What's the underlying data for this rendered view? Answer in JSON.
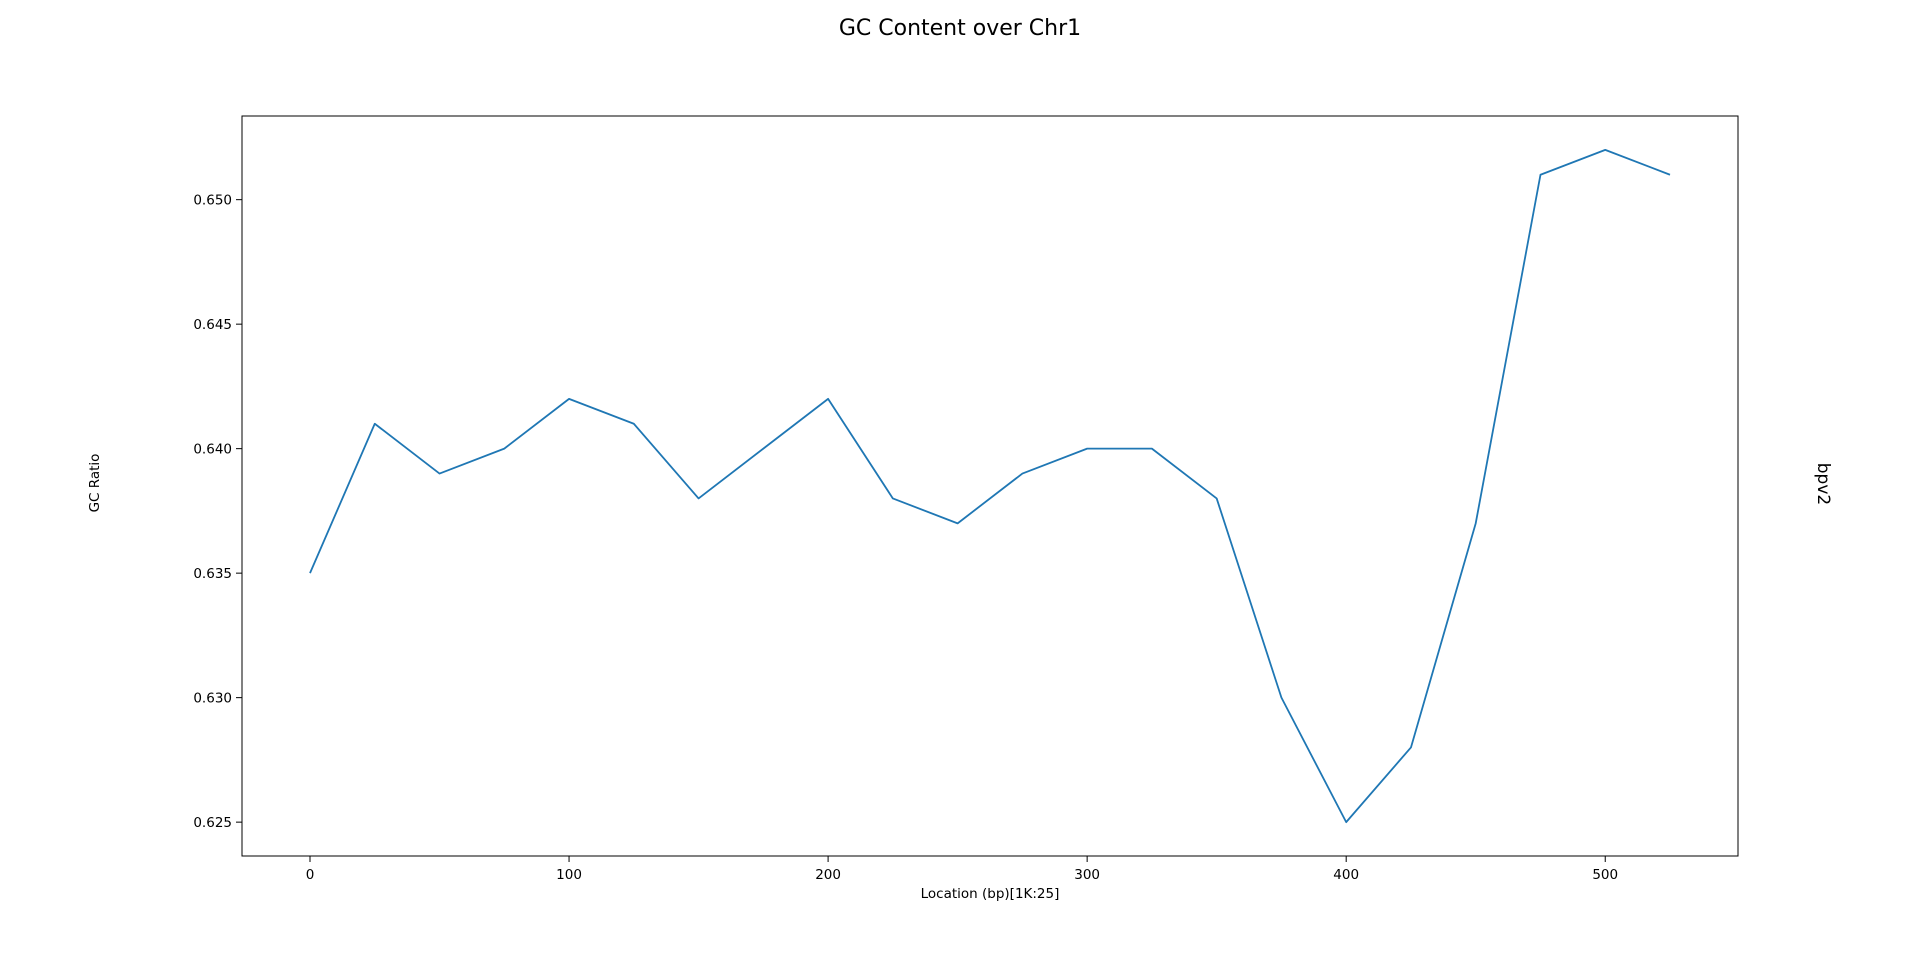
{
  "chart_data": {
    "type": "line",
    "title": "GC Content over Chr1",
    "xlabel": "Location (bp)[1K:25]",
    "ylabel": "GC Ratio",
    "side_label": "bpv2",
    "xlim": [
      -26.25,
      551.25
    ],
    "ylim": [
      0.62364,
      0.65336
    ],
    "x_ticks": [
      0,
      100,
      200,
      300,
      400,
      500
    ],
    "y_ticks": [
      0.625,
      0.63,
      0.635,
      0.64,
      0.645,
      0.65
    ],
    "x_tick_labels": [
      "0",
      "100",
      "200",
      "300",
      "400",
      "500"
    ],
    "y_tick_labels": [
      "0.625",
      "0.630",
      "0.635",
      "0.640",
      "0.645",
      "0.650"
    ],
    "grid": false,
    "line_color": "#1f77b4",
    "x": [
      0,
      25,
      50,
      75,
      100,
      125,
      150,
      175,
      200,
      225,
      250,
      275,
      300,
      325,
      350,
      375,
      400,
      425,
      450,
      475,
      500,
      525
    ],
    "y": [
      0.635,
      0.641,
      0.639,
      0.64,
      0.642,
      0.641,
      0.638,
      0.64,
      0.642,
      0.638,
      0.637,
      0.639,
      0.64,
      0.64,
      0.638,
      0.63,
      0.625,
      0.628,
      0.637,
      0.651,
      0.652,
      0.651
    ]
  }
}
